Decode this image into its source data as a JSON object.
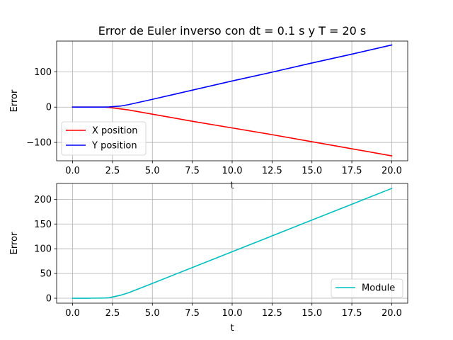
{
  "figure": {
    "title": "Error de Euler inverso con dt = 0.1 s y T = 20 s"
  },
  "chart_data": [
    {
      "type": "line",
      "title": "Error de Euler inverso con dt = 0.1 s y T = 20 s",
      "xlabel": "t",
      "ylabel": "Error",
      "xlim": [
        -1.0,
        21.0
      ],
      "ylim": [
        -152,
        187
      ],
      "xticks": [
        0.0,
        2.5,
        5.0,
        7.5,
        10.0,
        12.5,
        15.0,
        17.5,
        20.0
      ],
      "xtick_labels": [
        "0.0",
        "2.5",
        "5.0",
        "7.5",
        "10.0",
        "12.5",
        "15.0",
        "17.5",
        "20.0"
      ],
      "yticks": [
        -100,
        0,
        100
      ],
      "ytick_labels": [
        "−100",
        "0",
        "100"
      ],
      "grid": true,
      "legend_position": "lower-left",
      "series": [
        {
          "name": "X position",
          "color": "#ff0000",
          "x": [
            0.0,
            1.0,
            2.0,
            2.3,
            3.5,
            5.0,
            7.5,
            10.0,
            12.5,
            15.0,
            17.5,
            20.0
          ],
          "y": [
            0,
            0,
            0,
            -1,
            -8,
            -20,
            -40,
            -59,
            -78,
            -98,
            -118,
            -138
          ]
        },
        {
          "name": "Y position",
          "color": "#0000ff",
          "x": [
            0.0,
            1.0,
            2.0,
            2.3,
            3.0,
            3.5,
            5.0,
            7.5,
            10.0,
            12.5,
            15.0,
            17.5,
            20.0
          ],
          "y": [
            0,
            0,
            0,
            0.5,
            3,
            7,
            22,
            48,
            74,
            99,
            125,
            150,
            176
          ]
        }
      ]
    },
    {
      "type": "line",
      "title": "",
      "xlabel": "t",
      "ylabel": "Error",
      "xlim": [
        -1.0,
        21.0
      ],
      "ylim": [
        -10,
        232
      ],
      "xticks": [
        0.0,
        2.5,
        5.0,
        7.5,
        10.0,
        12.5,
        15.0,
        17.5,
        20.0
      ],
      "xtick_labels": [
        "0.0",
        "2.5",
        "5.0",
        "7.5",
        "10.0",
        "12.5",
        "15.0",
        "17.5",
        "20.0"
      ],
      "yticks": [
        0,
        50,
        100,
        150,
        200
      ],
      "ytick_labels": [
        "0",
        "50",
        "100",
        "150",
        "200"
      ],
      "grid": true,
      "legend_position": "lower-right",
      "series": [
        {
          "name": "Module",
          "color": "#00bfbf",
          "x": [
            0.0,
            1.0,
            2.0,
            2.3,
            3.0,
            3.5,
            5.0,
            7.5,
            10.0,
            12.5,
            15.0,
            17.5,
            20.0
          ],
          "y": [
            0,
            0,
            0.5,
            1,
            6,
            11,
            30,
            62,
            94,
            126,
            158,
            190,
            222
          ]
        }
      ]
    }
  ]
}
